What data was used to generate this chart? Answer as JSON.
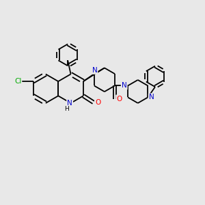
{
  "background_color": "#e8e8e8",
  "bond_color": "#000000",
  "N_color": "#0000cc",
  "O_color": "#ff0000",
  "Cl_color": "#00aa00",
  "line_width": 1.3,
  "fig_width": 3.0,
  "fig_height": 3.0,
  "dpi": 100,
  "xlim": [
    0,
    10
  ],
  "ylim": [
    0,
    10
  ]
}
